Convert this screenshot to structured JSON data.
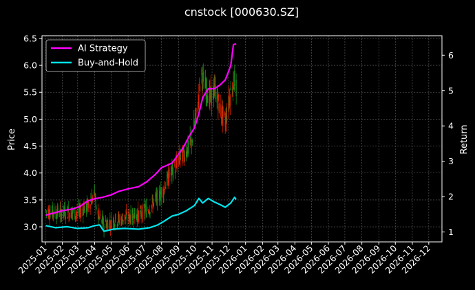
{
  "chart_data": {
    "type": "line",
    "title": "cnstock [000630.SZ]",
    "xlabel": "",
    "ylabel_left": "Price",
    "ylabel_right": "Return",
    "x_ticks": [
      "2025-01",
      "2025-02",
      "2025-03",
      "2025-04",
      "2025-05",
      "2025-06",
      "2025-07",
      "2025-08",
      "2025-09",
      "2025-10",
      "2025-11",
      "2025-12",
      "2026-01",
      "2026-02",
      "2026-03",
      "2026-04",
      "2026-05",
      "2026-06",
      "2026-07",
      "2026-08",
      "2026-09",
      "2026-10",
      "2026-11",
      "2026-12"
    ],
    "x_range": [
      "2024-12-26",
      "2026-12-25"
    ],
    "y_left_ticks": [
      "3.0",
      "3.5",
      "4.0",
      "4.5",
      "5.0",
      "5.5",
      "6.0",
      "6.5"
    ],
    "y_left_range": [
      2.72,
      6.55
    ],
    "y_right_ticks": [
      "1",
      "2",
      "3",
      "4",
      "5",
      "6"
    ],
    "y_right_range": [
      0.72,
      6.55
    ],
    "grid": true,
    "legend_position": "top-left",
    "colors": {
      "background": "#000000",
      "strategy": "#ff00ff",
      "buyhold": "#00e5ee",
      "up": "#1a8c1a",
      "down": "#e02000",
      "grid": "#666666",
      "axes": "#ffffff"
    },
    "series": [
      {
        "name": "AI Strategy",
        "axis": "right",
        "points": [
          [
            "2025-01-02",
            1.48
          ],
          [
            "2025-01-15",
            1.53
          ],
          [
            "2025-02-01",
            1.6
          ],
          [
            "2025-02-20",
            1.65
          ],
          [
            "2025-03-05",
            1.72
          ],
          [
            "2025-03-20",
            1.88
          ],
          [
            "2025-04-01",
            1.94
          ],
          [
            "2025-04-15",
            1.98
          ],
          [
            "2025-05-01",
            2.05
          ],
          [
            "2025-05-15",
            2.15
          ],
          [
            "2025-06-01",
            2.22
          ],
          [
            "2025-06-20",
            2.28
          ],
          [
            "2025-07-05",
            2.42
          ],
          [
            "2025-07-20",
            2.62
          ],
          [
            "2025-08-01",
            2.82
          ],
          [
            "2025-08-10",
            2.88
          ],
          [
            "2025-08-20",
            2.95
          ],
          [
            "2025-09-01",
            3.2
          ],
          [
            "2025-09-10",
            3.4
          ],
          [
            "2025-09-20",
            3.7
          ],
          [
            "2025-09-30",
            3.95
          ],
          [
            "2025-10-08",
            4.35
          ],
          [
            "2025-10-15",
            4.8
          ],
          [
            "2025-10-25",
            5.05
          ],
          [
            "2025-11-05",
            5.05
          ],
          [
            "2025-11-15",
            5.15
          ],
          [
            "2025-11-25",
            5.3
          ],
          [
            "2025-12-05",
            5.7
          ],
          [
            "2025-12-10",
            6.3
          ],
          [
            "2025-12-15",
            6.32
          ]
        ]
      },
      {
        "name": "Buy-and-Hold",
        "axis": "right",
        "points": [
          [
            "2025-01-02",
            1.18
          ],
          [
            "2025-01-20",
            1.12
          ],
          [
            "2025-02-10",
            1.15
          ],
          [
            "2025-03-01",
            1.1
          ],
          [
            "2025-03-20",
            1.12
          ],
          [
            "2025-04-01",
            1.18
          ],
          [
            "2025-04-10",
            1.2
          ],
          [
            "2025-04-18",
            1.02
          ],
          [
            "2025-05-05",
            1.08
          ],
          [
            "2025-05-25",
            1.1
          ],
          [
            "2025-06-20",
            1.08
          ],
          [
            "2025-07-10",
            1.12
          ],
          [
            "2025-07-25",
            1.2
          ],
          [
            "2025-08-05",
            1.3
          ],
          [
            "2025-08-20",
            1.45
          ],
          [
            "2025-09-01",
            1.5
          ],
          [
            "2025-09-15",
            1.6
          ],
          [
            "2025-09-30",
            1.75
          ],
          [
            "2025-10-08",
            1.95
          ],
          [
            "2025-10-15",
            1.82
          ],
          [
            "2025-10-25",
            1.95
          ],
          [
            "2025-11-05",
            1.85
          ],
          [
            "2025-11-15",
            1.78
          ],
          [
            "2025-11-25",
            1.7
          ],
          [
            "2025-12-05",
            1.82
          ],
          [
            "2025-12-12",
            1.98
          ],
          [
            "2025-12-15",
            1.92
          ]
        ]
      }
    ],
    "price_path": [
      [
        "2025-01-02",
        3.3
      ],
      [
        "2025-01-20",
        3.26
      ],
      [
        "2025-02-10",
        3.28
      ],
      [
        "2025-03-01",
        3.25
      ],
      [
        "2025-03-20",
        3.4
      ],
      [
        "2025-04-01",
        3.6
      ],
      [
        "2025-04-07",
        3.2
      ],
      [
        "2025-04-18",
        3.05
      ],
      [
        "2025-05-01",
        3.1
      ],
      [
        "2025-05-20",
        3.15
      ],
      [
        "2025-06-10",
        3.2
      ],
      [
        "2025-06-25",
        3.25
      ],
      [
        "2025-07-10",
        3.35
      ],
      [
        "2025-07-25",
        3.55
      ],
      [
        "2025-08-05",
        3.7
      ],
      [
        "2025-08-15",
        3.95
      ],
      [
        "2025-08-25",
        4.1
      ],
      [
        "2025-09-05",
        4.3
      ],
      [
        "2025-09-15",
        4.4
      ],
      [
        "2025-09-25",
        4.6
      ],
      [
        "2025-10-05",
        5.2
      ],
      [
        "2025-10-12",
        5.8
      ],
      [
        "2025-10-20",
        5.6
      ],
      [
        "2025-10-28",
        5.4
      ],
      [
        "2025-11-08",
        5.55
      ],
      [
        "2025-11-15",
        5.2
      ],
      [
        "2025-11-25",
        4.95
      ],
      [
        "2025-12-05",
        5.5
      ],
      [
        "2025-12-12",
        5.75
      ],
      [
        "2025-12-15",
        5.55
      ]
    ]
  }
}
